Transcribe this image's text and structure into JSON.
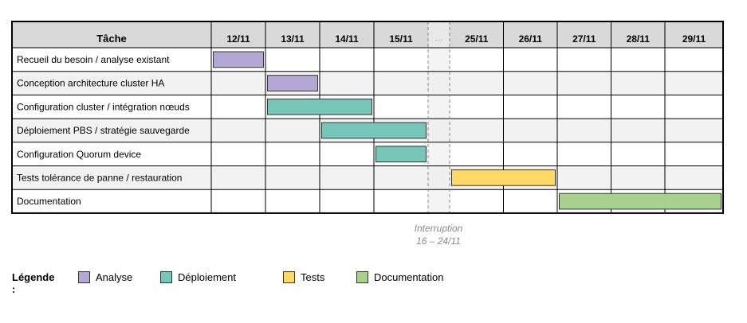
{
  "chart_data": {
    "type": "gantt",
    "task_header": "Tâche",
    "columns": [
      {
        "label": "12/11",
        "gap": false
      },
      {
        "label": "13/11",
        "gap": false
      },
      {
        "label": "14/11",
        "gap": false
      },
      {
        "label": "15/11",
        "gap": false
      },
      {
        "label": "···",
        "gap": true
      },
      {
        "label": "25/11",
        "gap": false
      },
      {
        "label": "26/11",
        "gap": false
      },
      {
        "label": "27/11",
        "gap": false
      },
      {
        "label": "28/11",
        "gap": false
      },
      {
        "label": "29/11",
        "gap": false
      }
    ],
    "tasks": [
      {
        "name": "Recueil du besoin / analyse existant",
        "start": "12/11",
        "end": "12/11",
        "category": "Analyse"
      },
      {
        "name": "Conception architecture cluster HA",
        "start": "13/11",
        "end": "13/11",
        "category": "Analyse"
      },
      {
        "name": "Configuration cluster / intégration nœuds",
        "start": "13/11",
        "end": "14/11",
        "category": "Déploiement"
      },
      {
        "name": "Déploiement PBS / stratégie sauvegarde",
        "start": "14/11",
        "end": "15/11",
        "category": "Déploiement"
      },
      {
        "name": "Configuration Quorum device",
        "start": "15/11",
        "end": "15/11",
        "category": "Déploiement"
      },
      {
        "name": "Tests tolérance de panne / restauration",
        "start": "25/11",
        "end": "26/11",
        "category": "Tests"
      },
      {
        "name": "Documentation",
        "start": "27/11",
        "end": "29/11",
        "category": "Documentation"
      }
    ],
    "interruption": {
      "line1": "Interruption",
      "line2": "16 – 24/11"
    },
    "legend_title": "Légende :",
    "legend": [
      {
        "label": "Analyse",
        "color": "#b4a7d6"
      },
      {
        "label": "Déploiement",
        "color": "#76c7b7"
      },
      {
        "label": "Tests",
        "color": "#ffd966"
      },
      {
        "label": "Documentation",
        "color": "#a9d18e"
      }
    ],
    "colors": {
      "header_bg": "#d9d9d9",
      "row_alt": "#f2f2f2",
      "gap_bg": "#efefef"
    }
  }
}
